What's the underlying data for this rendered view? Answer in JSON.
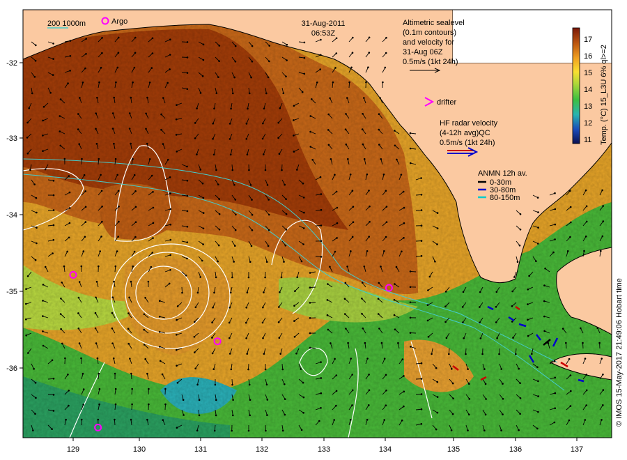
{
  "header": {
    "date": "31-Aug-2011",
    "time": "06:53Z"
  },
  "depth_legend": {
    "labels": "200  1000m",
    "argo_label": "Argo"
  },
  "altimetry_legend": {
    "lines": [
      "Altimetric sealevel",
      "(0.1m contours)",
      "and velocity for",
      "31-Aug 06Z",
      "0.5m/s (1kt 24h)"
    ]
  },
  "drifter_legend": {
    "label": "drifter",
    "color": "#ff00ff"
  },
  "radar_legend": {
    "lines": [
      "HF radar velocity",
      "(4-12h avg)QC",
      "0.5m/s (1kt 24h)"
    ]
  },
  "anmn_legend": {
    "title": "ANMN 12h av.",
    "items": [
      {
        "label": "0-30m",
        "color": "#000000"
      },
      {
        "label": "30-80m",
        "color": "#0000cc"
      },
      {
        "label": "80-150m",
        "color": "#00cccc"
      }
    ]
  },
  "colorbar": {
    "ticks": [
      "17",
      "16",
      "15",
      "14",
      "13",
      "12",
      "11"
    ],
    "title": "Temp. (°C) 15_L3U 6% ql>=2",
    "range": [
      10.7,
      17.6
    ]
  },
  "credit": "© IMOS 15-May-2017 21:49:06 Hobart time",
  "axes": {
    "x_ticks": [
      "129",
      "130",
      "131",
      "132",
      "133",
      "134",
      "135",
      "136",
      "137"
    ],
    "y_ticks": [
      "-32",
      "-33",
      "-34",
      "-35",
      "-36"
    ]
  },
  "argo_floats": [
    {
      "lon": 129.0,
      "lat": -34.78
    },
    {
      "lon": 131.33,
      "lat": -35.65
    },
    {
      "lon": 134.1,
      "lat": -34.95
    },
    {
      "lon": 129.4,
      "lat": -36.78
    }
  ],
  "colors": {
    "land": "#fbc9a1",
    "sst_warm": "#a84000",
    "sst_mid": "#e8a020",
    "sst_cool": "#38b830",
    "contour": "#ffffff",
    "isobath": "#44cccc"
  }
}
